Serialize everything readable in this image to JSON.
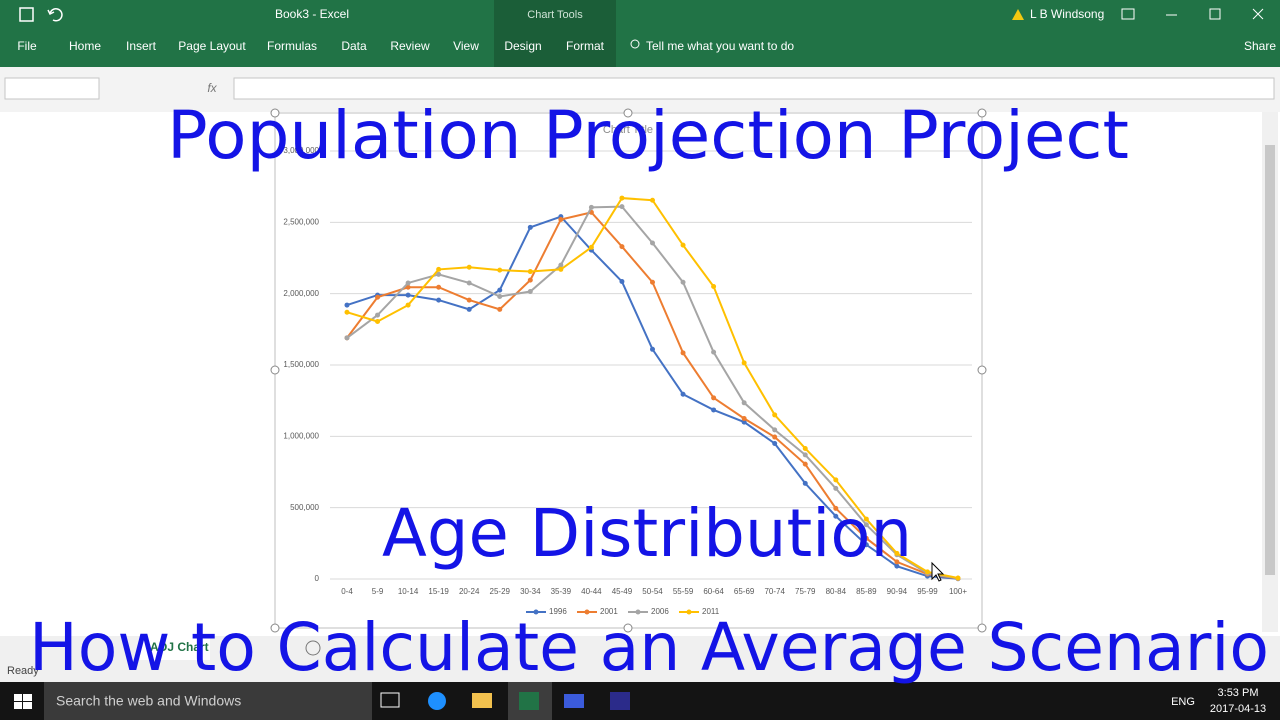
{
  "window": {
    "title": "Book3  -  Excel",
    "context_tab": "Chart Tools",
    "user": "L B Windsong"
  },
  "ribbon": {
    "tabs": [
      "File",
      "Home",
      "Insert",
      "Page Layout",
      "Formulas",
      "Data",
      "Review",
      "View",
      "Design",
      "Format"
    ],
    "tell_me": "Tell me what you want to do",
    "share": "Share"
  },
  "sheet_tabs": [
    "ADJ Chart"
  ],
  "status": "Ready",
  "taskbar": {
    "search": "Search the web and Windows",
    "language": "ENG",
    "time": "3:53 PM",
    "date": "2017-04-13"
  },
  "overlay": {
    "title": "Population Projection Project",
    "subtitle": "Age Distribution",
    "caption": "How to Calculate an Average Scenario"
  },
  "chart_data": {
    "type": "line",
    "title": "Chart Title",
    "categories": [
      "0-4",
      "5-9",
      "10-14",
      "15-19",
      "20-24",
      "25-29",
      "30-34",
      "35-39",
      "40-44",
      "45-49",
      "50-54",
      "55-59",
      "60-64",
      "65-69",
      "70-74",
      "75-79",
      "80-84",
      "85-89",
      "90-94",
      "95-99",
      "100+"
    ],
    "series": [
      {
        "name": "1996",
        "color": "#4472c4",
        "values": [
          1920000,
          1990000,
          1990000,
          1955000,
          1890000,
          2025000,
          2465000,
          2540000,
          2305000,
          2085000,
          1610000,
          1295000,
          1185000,
          1100000,
          950000,
          670000,
          440000,
          240000,
          90000,
          20000,
          2000
        ]
      },
      {
        "name": "2001",
        "color": "#ed7d31",
        "values": [
          1690000,
          1975000,
          2045000,
          2045000,
          1955000,
          1890000,
          2095000,
          2520000,
          2570000,
          2330000,
          2080000,
          1585000,
          1270000,
          1125000,
          995000,
          805000,
          495000,
          285000,
          120000,
          35000,
          3000
        ]
      },
      {
        "name": "2006",
        "color": "#a5a5a5",
        "values": [
          1690000,
          1850000,
          2075000,
          2135000,
          2075000,
          1980000,
          2015000,
          2200000,
          2605000,
          2610000,
          2355000,
          2080000,
          1590000,
          1235000,
          1045000,
          870000,
          635000,
          380000,
          170000,
          40000,
          4000
        ]
      },
      {
        "name": "2011",
        "color": "#ffc000",
        "values": [
          1870000,
          1805000,
          1920000,
          2170000,
          2185000,
          2165000,
          2155000,
          2170000,
          2325000,
          2670000,
          2655000,
          2340000,
          2050000,
          1515000,
          1150000,
          915000,
          695000,
          420000,
          180000,
          50000,
          7000
        ]
      }
    ],
    "ylim": [
      0,
      3000000
    ],
    "yticks": [
      0,
      {
        "value": 500000,
        "label": "500,000"
      },
      {
        "value": 1000000,
        "label": "1,000,000"
      },
      {
        "value": 1500000,
        "label": "1,500,000"
      },
      {
        "value": 2000000,
        "label": "2,000,000"
      },
      {
        "value": 2500000,
        "label": "2,500,000"
      },
      {
        "value": 3000000,
        "label": "3,000,000"
      }
    ],
    "grid": true,
    "legend": "bottom"
  }
}
